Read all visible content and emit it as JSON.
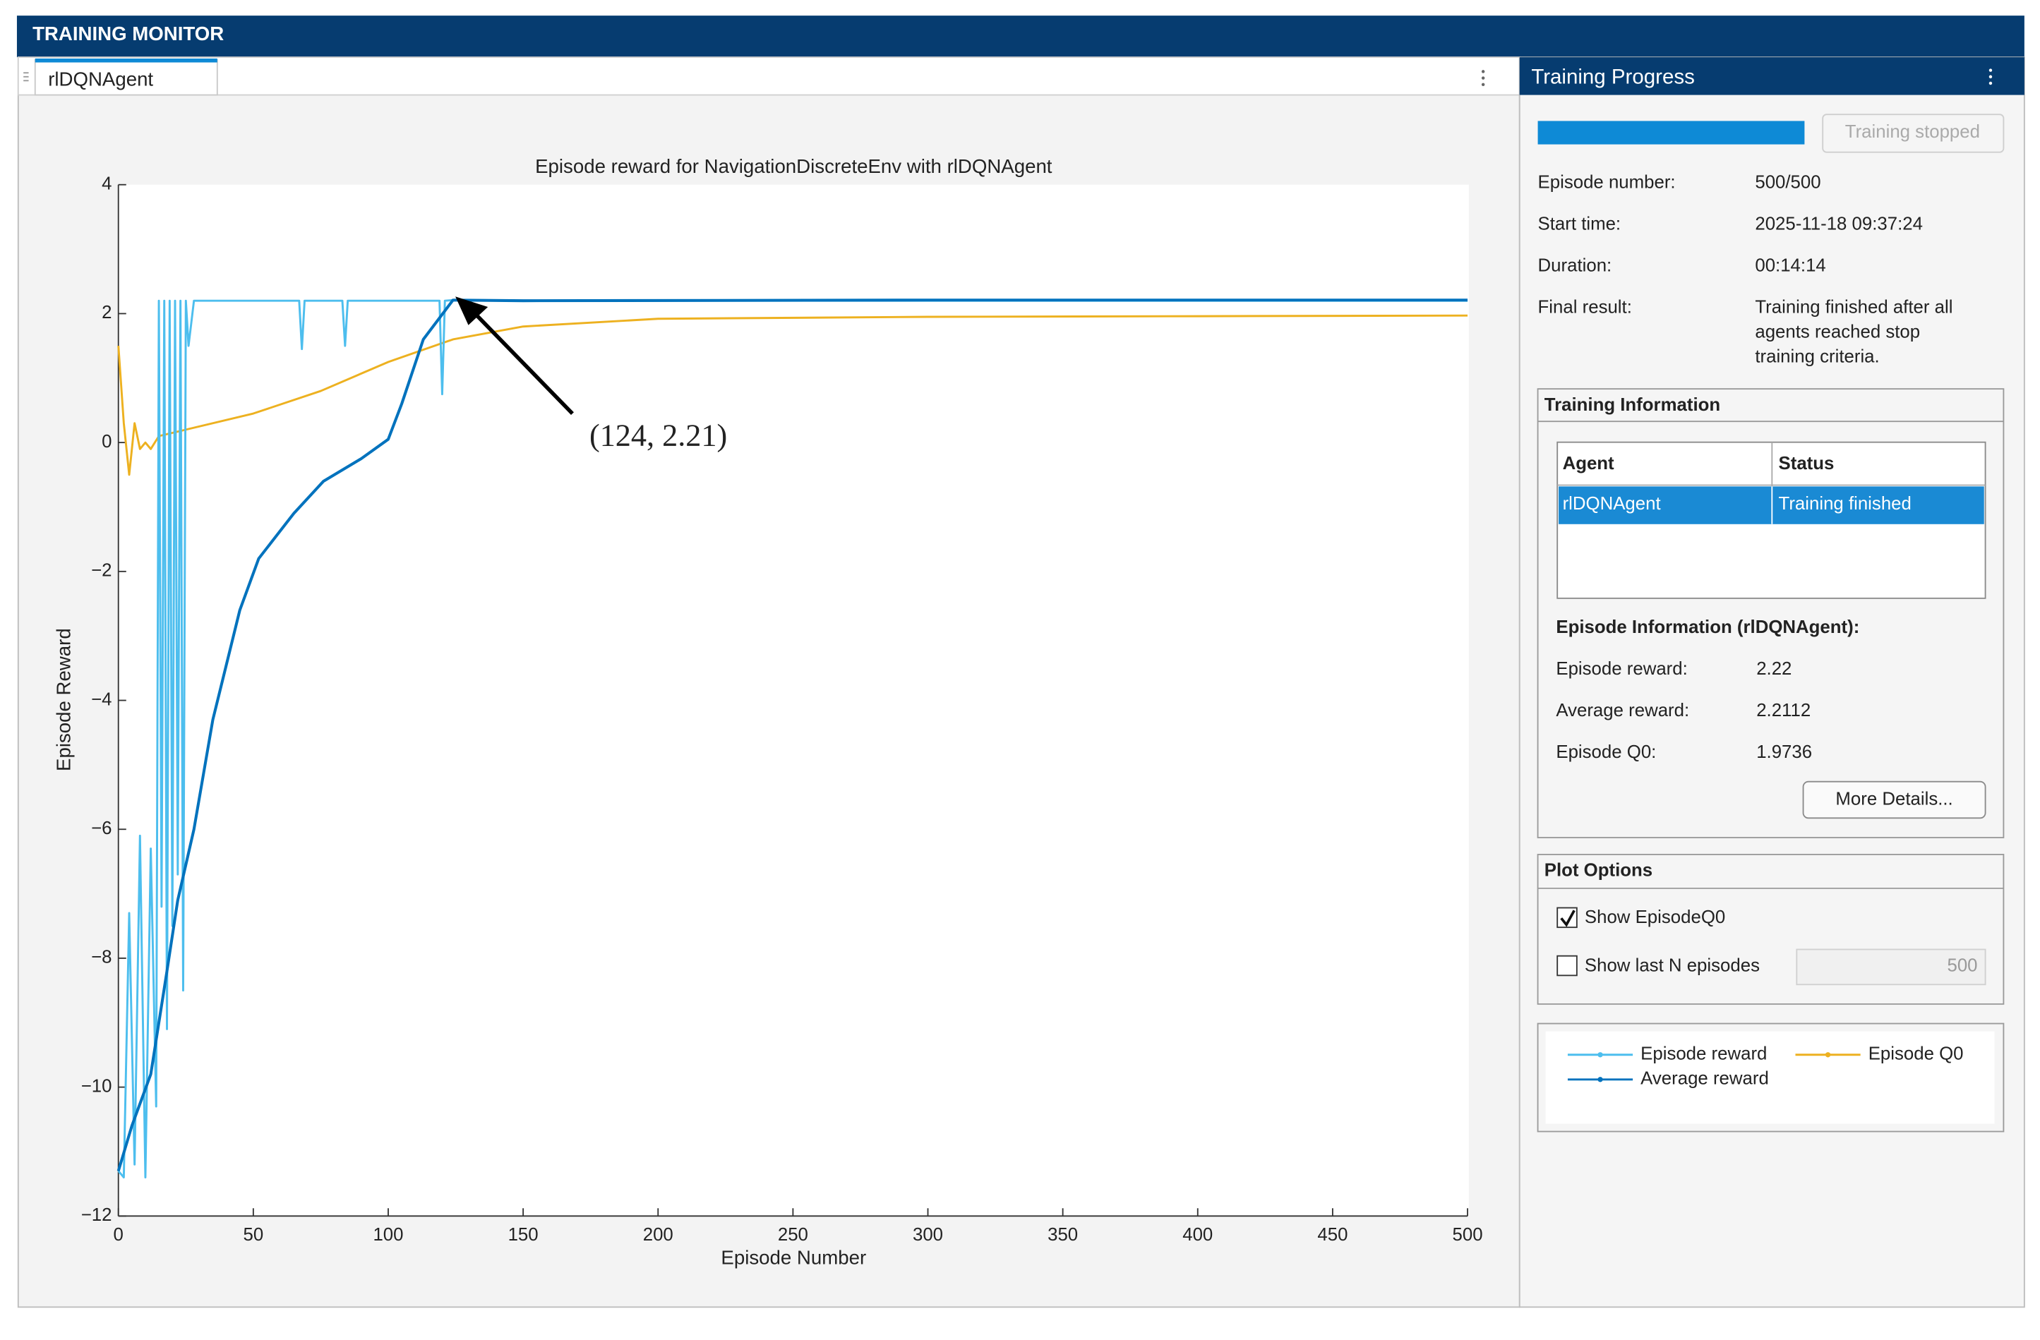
{
  "window": {
    "title": "TRAINING MONITOR",
    "tab": "rlDQNAgent"
  },
  "chart_data": {
    "type": "line",
    "title": "Episode reward for NavigationDiscreteEnv with rlDQNAgent",
    "x_label": "Episode Number",
    "y_label": "Episode Reward",
    "xlim": [
      0,
      500
    ],
    "ylim": [
      -12,
      4
    ],
    "xticks": [
      0,
      50,
      100,
      150,
      200,
      250,
      300,
      350,
      400,
      450,
      500
    ],
    "yticks": [
      {
        "value": -12,
        "label": "−12"
      },
      {
        "value": -10,
        "label": "−10"
      },
      {
        "value": -8,
        "label": "−8"
      },
      {
        "value": -6,
        "label": "−6"
      },
      {
        "value": -4,
        "label": "−4"
      },
      {
        "value": -2,
        "label": "−2"
      },
      0,
      2,
      4
    ],
    "annotation": "(124, 2.21)",
    "series": [
      {
        "name": "Episode reward",
        "color": "#4dbeee",
        "x": [
          0,
          2,
          4,
          6,
          8,
          10,
          12,
          14,
          15,
          16,
          17,
          18,
          19,
          20,
          21,
          22,
          23,
          24,
          25,
          26,
          28,
          30,
          50,
          67,
          68,
          69,
          83,
          84,
          85,
          100,
          119,
          120,
          121,
          124,
          150,
          200,
          300,
          400,
          500
        ],
        "values": [
          -11.3,
          -11.4,
          -7.3,
          -11.2,
          -6.1,
          -11.4,
          -6.3,
          -10.3,
          2.2,
          -7.2,
          2.2,
          -9.1,
          2.2,
          -7.5,
          2.2,
          -6.7,
          2.2,
          -8.5,
          2.2,
          1.5,
          2.2,
          2.2,
          2.2,
          2.2,
          1.45,
          2.2,
          2.2,
          1.5,
          2.2,
          2.2,
          2.2,
          0.75,
          2.2,
          2.21,
          2.2,
          2.2,
          2.2,
          2.2,
          2.2
        ]
      },
      {
        "name": "Average reward",
        "color": "#0072bd",
        "x": [
          0,
          5,
          12,
          18,
          22,
          28,
          35,
          45,
          52,
          65,
          76,
          90,
          100,
          105,
          113,
          124,
          150,
          300,
          500
        ],
        "values": [
          -11.3,
          -10.6,
          -9.8,
          -8.2,
          -7.1,
          -6,
          -4.3,
          -2.6,
          -1.8,
          -1.1,
          -0.6,
          -0.25,
          0.05,
          0.6,
          1.6,
          2.21,
          2.2,
          2.21,
          2.21
        ]
      },
      {
        "name": "Episode Q0",
        "color": "#edb120",
        "x": [
          0,
          2,
          4,
          6,
          8,
          10,
          12,
          15,
          25,
          50,
          75,
          100,
          124,
          150,
          200,
          300,
          400,
          500
        ],
        "values": [
          1.5,
          0.3,
          -0.5,
          0.3,
          -0.1,
          0,
          -0.1,
          0.1,
          0.2,
          0.45,
          0.8,
          1.25,
          1.6,
          1.8,
          1.92,
          1.95,
          1.96,
          1.97
        ]
      }
    ]
  },
  "progress": {
    "title": "Training Progress",
    "button": "Training stopped",
    "fields": [
      {
        "label": "Episode number:",
        "value": "500/500"
      },
      {
        "label": "Start time:",
        "value": "2025-11-18 09:37:24"
      },
      {
        "label": "Duration:",
        "value": "00:14:14"
      },
      {
        "label": "Final result:",
        "lines": [
          "Training finished after all",
          "agents reached stop",
          "training criteria."
        ]
      }
    ]
  },
  "training_information": {
    "title": "Training Information",
    "table": {
      "header": [
        "Agent",
        "Status"
      ],
      "rows": [
        [
          "rlDQNAgent",
          "Training finished"
        ]
      ]
    },
    "episode_title": "Episode Information (rlDQNAgent):",
    "fields": [
      {
        "label": "Episode reward:",
        "value": "2.22"
      },
      {
        "label": "Average reward:",
        "value": "2.2112"
      },
      {
        "label": "Episode Q0:",
        "value": "1.9736"
      }
    ],
    "button": "More Details..."
  },
  "plot_options": {
    "title": "Plot Options",
    "show_q0": "Show EpisodeQ0",
    "show_last": "Show last N episodes",
    "n": "500"
  }
}
